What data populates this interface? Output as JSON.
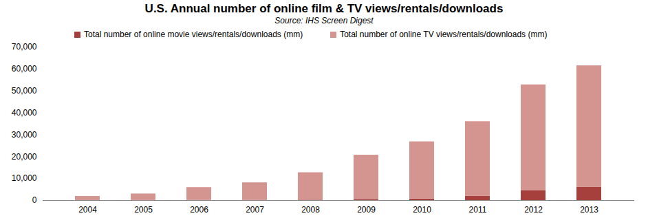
{
  "chart_data": {
    "type": "bar",
    "title": "U.S. Annual number of online film & TV views/rentals/downloads",
    "subtitle": "Source: IHS Screen Digest",
    "stacked": true,
    "grid": false,
    "legend": "top",
    "categories": [
      "2004",
      "2005",
      "2006",
      "2007",
      "2008",
      "2009",
      "2010",
      "2011",
      "2012",
      "2013"
    ],
    "series": [
      {
        "name": "Total number of online movie views/rentals/downloads (mm)",
        "color": "#a5403c",
        "values": [
          20,
          40,
          80,
          120,
          200,
          500,
          700,
          2000,
          4600,
          6000
        ]
      },
      {
        "name": "Total number of online TV views/rentals/downloads (mm)",
        "color": "#d49490",
        "values": [
          1880,
          2960,
          5820,
          7980,
          12500,
          20200,
          26100,
          34000,
          48200,
          55500
        ]
      }
    ],
    "ylim": [
      0,
      70000
    ],
    "yticks": [
      0,
      {
        "value": 10000,
        "label": "10,000"
      },
      {
        "value": 20000,
        "label": "20,000"
      },
      {
        "value": 30000,
        "label": "30,000"
      },
      {
        "value": 40000,
        "label": "40,000"
      },
      {
        "value": 50000,
        "label": "50,000"
      },
      {
        "value": 60000,
        "label": "60,000"
      },
      {
        "value": 70000,
        "label": "70,000"
      }
    ]
  }
}
